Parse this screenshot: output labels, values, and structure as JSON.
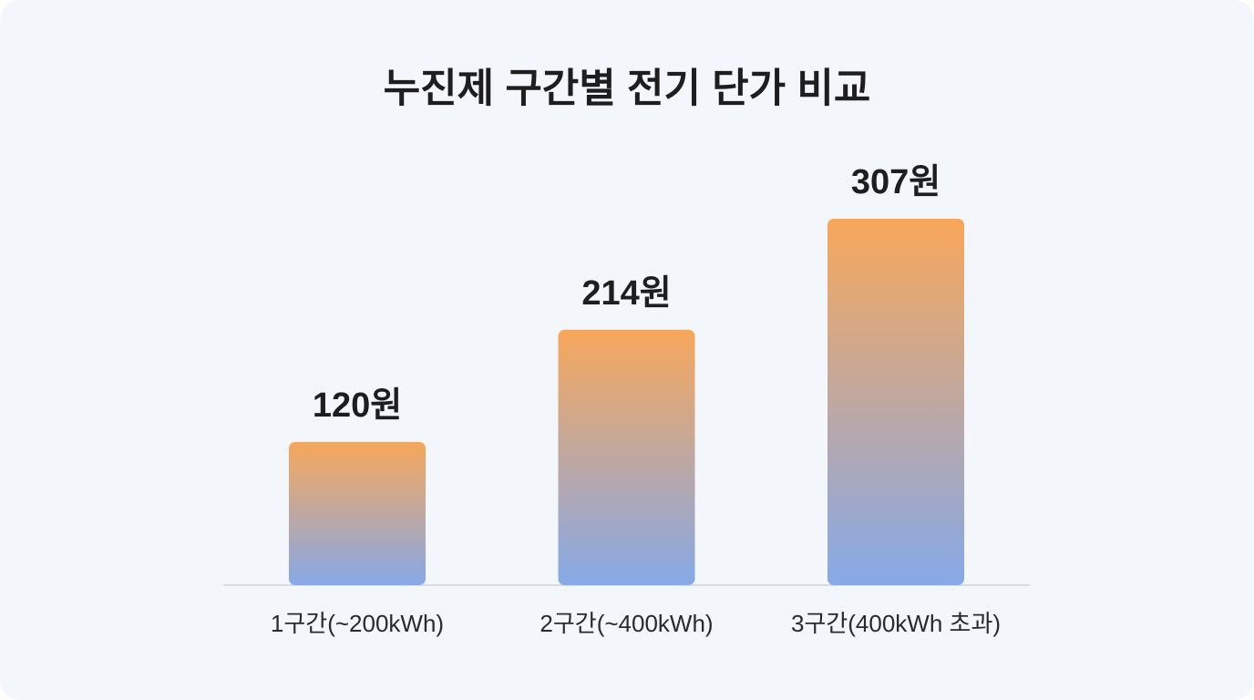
{
  "chart_data": {
    "type": "bar",
    "title": "누진제 구간별 전기 단가 비교",
    "categories": [
      "1구간(~200kWh)",
      "2구간(~400kWh)",
      "3구간(400kWh 초과)"
    ],
    "values": [
      120,
      214,
      307
    ],
    "value_labels": [
      "120원",
      "214원",
      "307원"
    ],
    "colors": [
      "#f8a75a",
      "#86a9e8"
    ]
  }
}
